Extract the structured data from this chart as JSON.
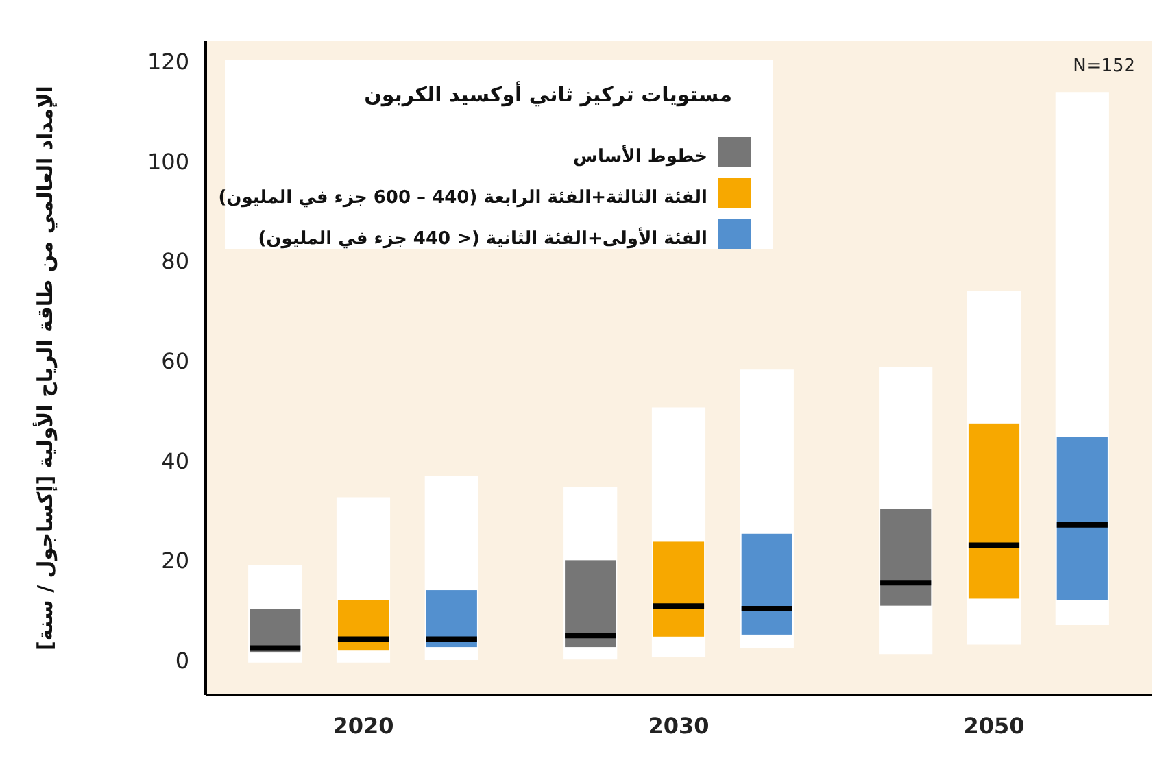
{
  "chart_data": {
    "type": "box",
    "ylabel": "الإمداد العالمي من طاقة الرياح الأولية [إكساجول / سنة]",
    "legend_title": "مستويات تركيز ثاني أوكسيد الكربون",
    "categories": [
      "2020",
      "2030",
      "2050"
    ],
    "series": [
      {
        "name": "خطوط الأساس",
        "color": "#767676",
        "boxes": [
          {
            "low": -0.5,
            "q1": 1.5,
            "median": 2.4,
            "q3": 10.2,
            "high": 19.0
          },
          {
            "low": 0.1,
            "q1": 2.6,
            "median": 4.9,
            "q3": 20.0,
            "high": 34.6
          },
          {
            "low": 1.2,
            "q1": 10.9,
            "median": 15.5,
            "q3": 30.3,
            "high": 58.7
          }
        ]
      },
      {
        "name": "الفئة الثالثة+الفئة الرابعة (440 – 600 جزء في المليون)",
        "color": "#f7a800",
        "boxes": [
          {
            "low": -0.5,
            "q1": 1.9,
            "median": 4.2,
            "q3": 12.0,
            "high": 32.6
          },
          {
            "low": 0.7,
            "q1": 4.7,
            "median": 10.8,
            "q3": 23.7,
            "high": 50.6
          },
          {
            "low": 3.1,
            "q1": 12.3,
            "median": 23.0,
            "q3": 47.4,
            "high": 73.9
          }
        ]
      },
      {
        "name": "الفئة الأولى+الفئة الثانية (< 440 جزء في المليون)",
        "color": "#5390cf",
        "boxes": [
          {
            "low": 0,
            "q1": 2.6,
            "median": 4.2,
            "q3": 14.0,
            "high": 36.9
          },
          {
            "low": 2.4,
            "q1": 5.1,
            "median": 10.3,
            "q3": 25.3,
            "high": 58.2
          },
          {
            "low": 7.0,
            "q1": 12.0,
            "median": 27.1,
            "q3": 44.7,
            "high": 113.8
          }
        ]
      }
    ],
    "ylim": [
      -7,
      124
    ],
    "yticks": [
      0,
      20,
      40,
      60,
      80,
      100,
      120
    ],
    "legend": "top left",
    "annotations": [
      "N=152"
    ]
  }
}
